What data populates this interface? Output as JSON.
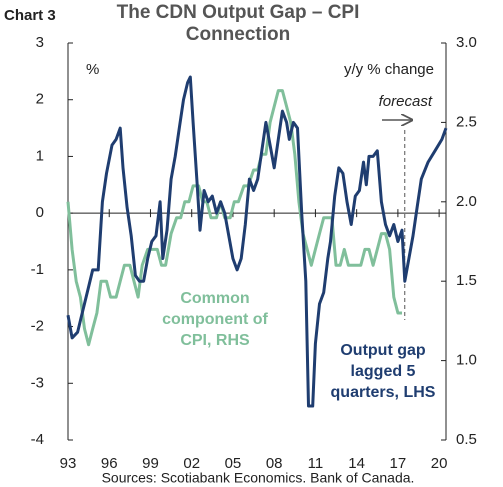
{
  "chart_data": {
    "type": "line",
    "chart_label": "Chart 3",
    "title": "The CDN Output Gap – CPI Connection",
    "y_label": "%",
    "y2_label": "y/y % change",
    "annotation": "forecast",
    "forecast_start": 2017.5,
    "source": "Sources: Scotiabank Economics. Bank of Canada.",
    "xlim": [
      1993,
      2020.5
    ],
    "xticks": [
      {
        "value": 1993,
        "label": "93"
      },
      {
        "value": 1996,
        "label": "96"
      },
      {
        "value": 1999,
        "label": "99"
      },
      {
        "value": 2002,
        "label": "02"
      },
      {
        "value": 2005,
        "label": "05"
      },
      {
        "value": 2008,
        "label": "08"
      },
      {
        "value": 2011,
        "label": "11"
      },
      {
        "value": 2014,
        "label": "14"
      },
      {
        "value": 2017,
        "label": "17"
      },
      {
        "value": 2020,
        "label": "20"
      }
    ],
    "ylim": [
      -4,
      3
    ],
    "yticks": [
      -4,
      -3,
      -2,
      -1,
      0,
      1,
      2,
      3
    ],
    "y2lim": [
      0.5,
      3
    ],
    "y2ticks": [
      0.5,
      {
        "value": 1,
        "label": "1.0"
      },
      1.5,
      {
        "value": 2,
        "label": "2.0"
      },
      2.5,
      {
        "value": 3,
        "label": "3.0"
      }
    ],
    "series": [
      {
        "name": "Output gap lagged 5 quarters, LHS",
        "color": "#1f3d70",
        "axis": "y",
        "x": [
          1993.0,
          1993.3,
          1993.7,
          1994.0,
          1994.5,
          1994.8,
          1995.2,
          1995.5,
          1995.8,
          1996.2,
          1996.5,
          1996.8,
          1997.0,
          1997.3,
          1997.6,
          1997.9,
          1998.2,
          1998.5,
          1998.8,
          1999.1,
          1999.4,
          1999.7,
          1999.9,
          2000.2,
          2000.5,
          2000.8,
          2001.1,
          2001.4,
          2001.7,
          2001.9,
          2002.1,
          2002.4,
          2002.6,
          2002.9,
          2003.2,
          2003.5,
          2003.8,
          2004.1,
          2004.4,
          2004.7,
          2005.0,
          2005.3,
          2005.6,
          2005.9,
          2006.2,
          2006.5,
          2006.8,
          2007.1,
          2007.4,
          2007.7,
          2008.0,
          2008.3,
          2008.6,
          2008.9,
          2009.1,
          2009.4,
          2009.7,
          2010.0,
          2010.3,
          2010.5,
          2010.8,
          2011.0,
          2011.3,
          2011.6,
          2011.9,
          2012.1,
          2012.4,
          2012.7,
          2013.0,
          2013.3,
          2013.6,
          2013.9,
          2014.2,
          2014.5,
          2014.7,
          2014.9,
          2015.2,
          2015.5,
          2015.8,
          2016.1,
          2016.4,
          2016.7,
          2017.0,
          2017.3,
          2017.5,
          2017.8,
          2018.1,
          2018.4,
          2018.7,
          2019.2,
          2019.7,
          2020.2,
          2020.5
        ],
        "values": [
          -1.8,
          -2.2,
          -2.1,
          -1.8,
          -1.3,
          -1.0,
          -1.0,
          0.2,
          0.7,
          1.2,
          1.3,
          1.5,
          0.8,
          0.1,
          -0.4,
          -1.1,
          -1.2,
          -1.2,
          -0.8,
          -0.5,
          -0.4,
          0.2,
          -0.8,
          -0.3,
          0.6,
          1.0,
          1.5,
          2.0,
          2.3,
          2.4,
          1.6,
          0.5,
          -0.3,
          0.4,
          0.2,
          0.3,
          0.0,
          0.2,
          0.0,
          -0.4,
          -0.8,
          -1.0,
          -0.8,
          -0.2,
          0.6,
          0.4,
          0.6,
          1.1,
          1.6,
          1.2,
          0.8,
          1.3,
          1.8,
          1.6,
          1.3,
          1.6,
          1.5,
          0.0,
          -1.2,
          -3.4,
          -3.4,
          -2.3,
          -1.6,
          -1.4,
          -0.8,
          -0.5,
          0.3,
          0.8,
          0.7,
          0.2,
          -0.2,
          0.3,
          0.4,
          0.9,
          0.5,
          1.0,
          1.0,
          1.1,
          0.2,
          -0.2,
          -0.4,
          -0.2,
          -0.5,
          -0.3,
          -1.2,
          -0.8,
          -0.4,
          0.1,
          0.6,
          0.9,
          1.1,
          1.3,
          1.5
        ]
      },
      {
        "name": "Common component of CPI, RHS",
        "color": "#80bf9b",
        "axis": "y2",
        "x": [
          1993.0,
          1993.3,
          1993.6,
          1993.9,
          1994.2,
          1994.5,
          1994.8,
          1995.1,
          1995.4,
          1995.8,
          1996.1,
          1996.5,
          1996.8,
          1997.1,
          1997.5,
          1997.8,
          1998.1,
          1998.4,
          1998.8,
          1999.1,
          1999.5,
          1999.8,
          2000.1,
          2000.5,
          2000.9,
          2001.2,
          2001.5,
          2001.8,
          2002.1,
          2002.5,
          2002.8,
          2003.1,
          2003.4,
          2003.8,
          2004.1,
          2004.4,
          2004.8,
          2005.1,
          2005.4,
          2005.8,
          2006.1,
          2006.5,
          2006.8,
          2007.1,
          2007.4,
          2007.7,
          2008.0,
          2008.3,
          2008.6,
          2008.9,
          2009.2,
          2009.5,
          2009.8,
          2010.1,
          2010.4,
          2010.7,
          2011.0,
          2011.3,
          2011.6,
          2011.9,
          2012.2,
          2012.5,
          2012.8,
          2013.1,
          2013.4,
          2013.7,
          2014.0,
          2014.3,
          2014.6,
          2014.9,
          2015.2,
          2015.5,
          2015.8,
          2016.1,
          2016.4,
          2016.7,
          2017.0,
          2017.3
        ],
        "values": [
          2.0,
          1.7,
          1.5,
          1.4,
          1.2,
          1.1,
          1.2,
          1.3,
          1.5,
          1.5,
          1.4,
          1.4,
          1.5,
          1.6,
          1.6,
          1.5,
          1.4,
          1.6,
          1.7,
          1.7,
          1.7,
          1.6,
          1.6,
          1.8,
          1.9,
          1.9,
          2.0,
          2.0,
          2.1,
          2.1,
          2.0,
          2.0,
          1.9,
          1.9,
          2.0,
          1.9,
          1.9,
          2.0,
          2.0,
          2.1,
          2.1,
          2.2,
          2.2,
          2.3,
          2.3,
          2.5,
          2.6,
          2.7,
          2.7,
          2.6,
          2.5,
          2.3,
          2.0,
          1.8,
          1.7,
          1.6,
          1.7,
          1.8,
          1.9,
          1.9,
          1.9,
          1.6,
          1.6,
          1.7,
          1.6,
          1.6,
          1.6,
          1.6,
          1.7,
          1.7,
          1.6,
          1.7,
          1.8,
          1.8,
          1.7,
          1.4,
          1.3,
          1.3
        ]
      }
    ]
  }
}
